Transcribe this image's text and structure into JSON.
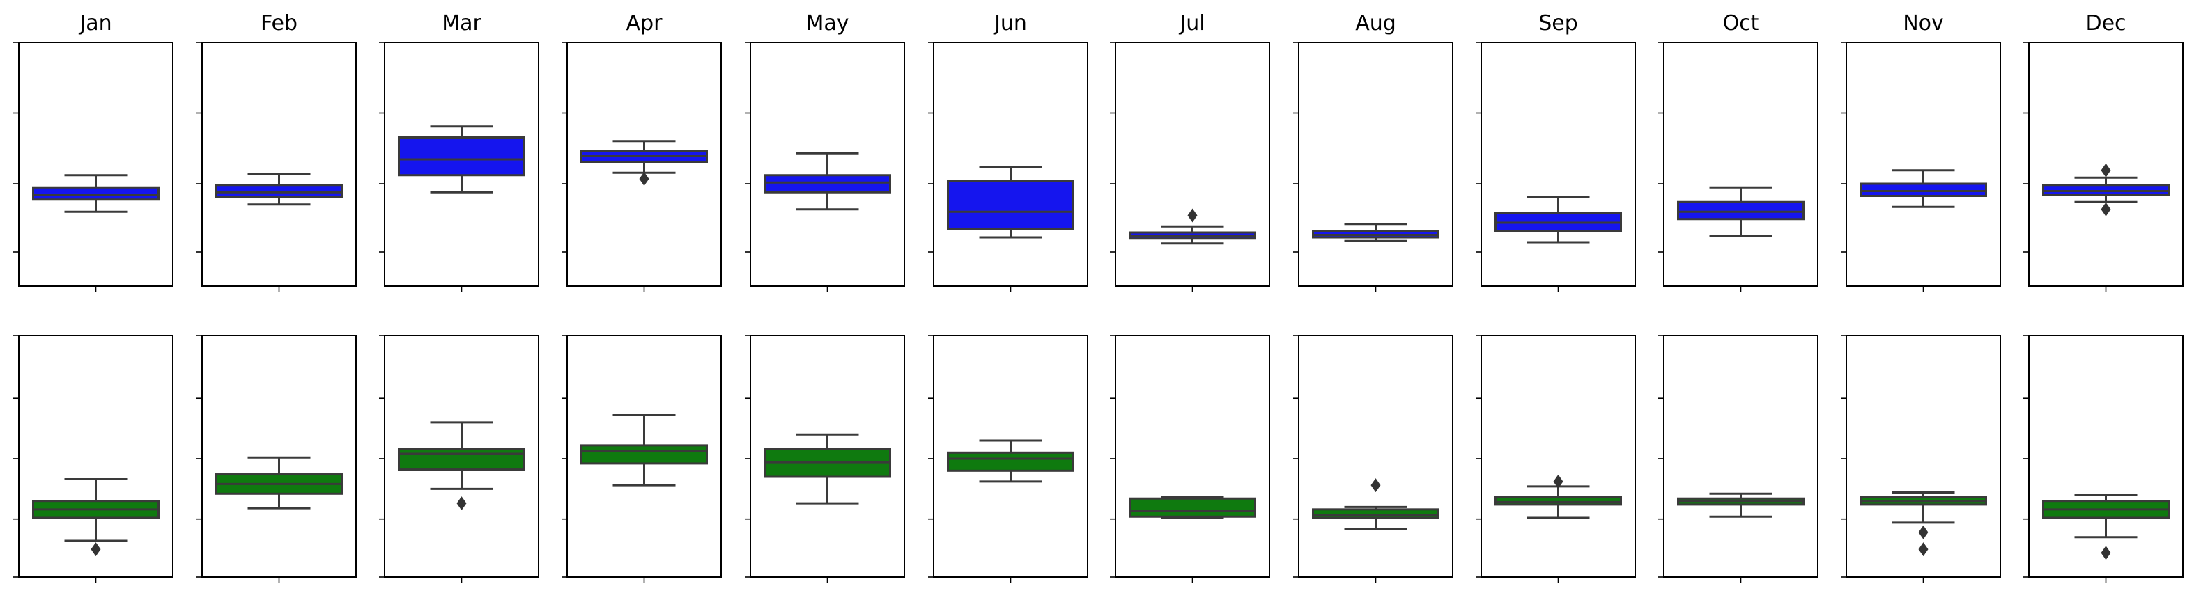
{
  "chart_data": {
    "type": "box",
    "layout": "2 rows x 12 columns of small-multiple box plots; y tick labels hidden",
    "months": [
      "Jan",
      "Feb",
      "Mar",
      "Apr",
      "May",
      "Jun",
      "Jul",
      "Aug",
      "Sep",
      "Oct",
      "Nov",
      "Dec"
    ],
    "rows": [
      {
        "color": "#1515ee",
        "ylim": [
          0,
          1
        ],
        "yticks": [
          0.14,
          0.42,
          0.71,
          1.0
        ],
        "boxes": [
          {
            "whislo": 0.305,
            "q1": 0.355,
            "med": 0.375,
            "q3": 0.405,
            "whishi": 0.455,
            "fliers": []
          },
          {
            "whislo": 0.335,
            "q1": 0.365,
            "med": 0.385,
            "q3": 0.415,
            "whishi": 0.46,
            "fliers": []
          },
          {
            "whislo": 0.385,
            "q1": 0.455,
            "med": 0.52,
            "q3": 0.61,
            "whishi": 0.655,
            "fliers": []
          },
          {
            "whislo": 0.465,
            "q1": 0.51,
            "med": 0.535,
            "q3": 0.555,
            "whishi": 0.595,
            "fliers": [
              0.44
            ]
          },
          {
            "whislo": 0.315,
            "q1": 0.385,
            "med": 0.425,
            "q3": 0.455,
            "whishi": 0.545,
            "fliers": []
          },
          {
            "whislo": 0.2,
            "q1": 0.235,
            "med": 0.305,
            "q3": 0.43,
            "whishi": 0.49,
            "fliers": []
          },
          {
            "whislo": 0.175,
            "q1": 0.195,
            "med": 0.205,
            "q3": 0.22,
            "whishi": 0.245,
            "fliers": [
              0.29
            ]
          },
          {
            "whislo": 0.185,
            "q1": 0.2,
            "med": 0.21,
            "q3": 0.225,
            "whishi": 0.255,
            "fliers": []
          },
          {
            "whislo": 0.18,
            "q1": 0.225,
            "med": 0.26,
            "q3": 0.3,
            "whishi": 0.365,
            "fliers": []
          },
          {
            "whislo": 0.205,
            "q1": 0.275,
            "med": 0.305,
            "q3": 0.345,
            "whishi": 0.405,
            "fliers": []
          },
          {
            "whislo": 0.325,
            "q1": 0.37,
            "med": 0.39,
            "q3": 0.42,
            "whishi": 0.475,
            "fliers": []
          },
          {
            "whislo": 0.345,
            "q1": 0.375,
            "med": 0.39,
            "q3": 0.415,
            "whishi": 0.445,
            "fliers": [
              0.315,
              0.475
            ]
          }
        ]
      },
      {
        "color": "#0f7a0f",
        "ylim": [
          0,
          1
        ],
        "yticks": [
          0.0,
          0.24,
          0.49,
          0.74,
          1.0
        ],
        "boxes": [
          {
            "whislo": 0.15,
            "q1": 0.245,
            "med": 0.28,
            "q3": 0.315,
            "whishi": 0.405,
            "fliers": [
              0.115
            ]
          },
          {
            "whislo": 0.285,
            "q1": 0.345,
            "med": 0.385,
            "q3": 0.425,
            "whishi": 0.495,
            "fliers": []
          },
          {
            "whislo": 0.365,
            "q1": 0.445,
            "med": 0.51,
            "q3": 0.53,
            "whishi": 0.64,
            "fliers": [
              0.305
            ]
          },
          {
            "whislo": 0.38,
            "q1": 0.47,
            "med": 0.52,
            "q3": 0.545,
            "whishi": 0.67,
            "fliers": []
          },
          {
            "whislo": 0.305,
            "q1": 0.415,
            "med": 0.475,
            "q3": 0.53,
            "whishi": 0.59,
            "fliers": []
          },
          {
            "whislo": 0.395,
            "q1": 0.44,
            "med": 0.49,
            "q3": 0.515,
            "whishi": 0.565,
            "fliers": []
          },
          {
            "whislo": 0.245,
            "q1": 0.25,
            "med": 0.275,
            "q3": 0.325,
            "whishi": 0.33,
            "fliers": []
          },
          {
            "whislo": 0.2,
            "q1": 0.245,
            "med": 0.255,
            "q3": 0.28,
            "whishi": 0.29,
            "fliers": [
              0.38
            ]
          },
          {
            "whislo": 0.245,
            "q1": 0.3,
            "med": 0.31,
            "q3": 0.33,
            "whishi": 0.375,
            "fliers": [
              0.395
            ]
          },
          {
            "whislo": 0.25,
            "q1": 0.3,
            "med": 0.315,
            "q3": 0.325,
            "whishi": 0.345,
            "fliers": []
          },
          {
            "whislo": 0.225,
            "q1": 0.3,
            "med": 0.315,
            "q3": 0.33,
            "whishi": 0.35,
            "fliers": [
              0.185,
              0.115
            ]
          },
          {
            "whislo": 0.165,
            "q1": 0.245,
            "med": 0.28,
            "q3": 0.315,
            "whishi": 0.34,
            "fliers": [
              0.1
            ]
          }
        ]
      }
    ]
  }
}
